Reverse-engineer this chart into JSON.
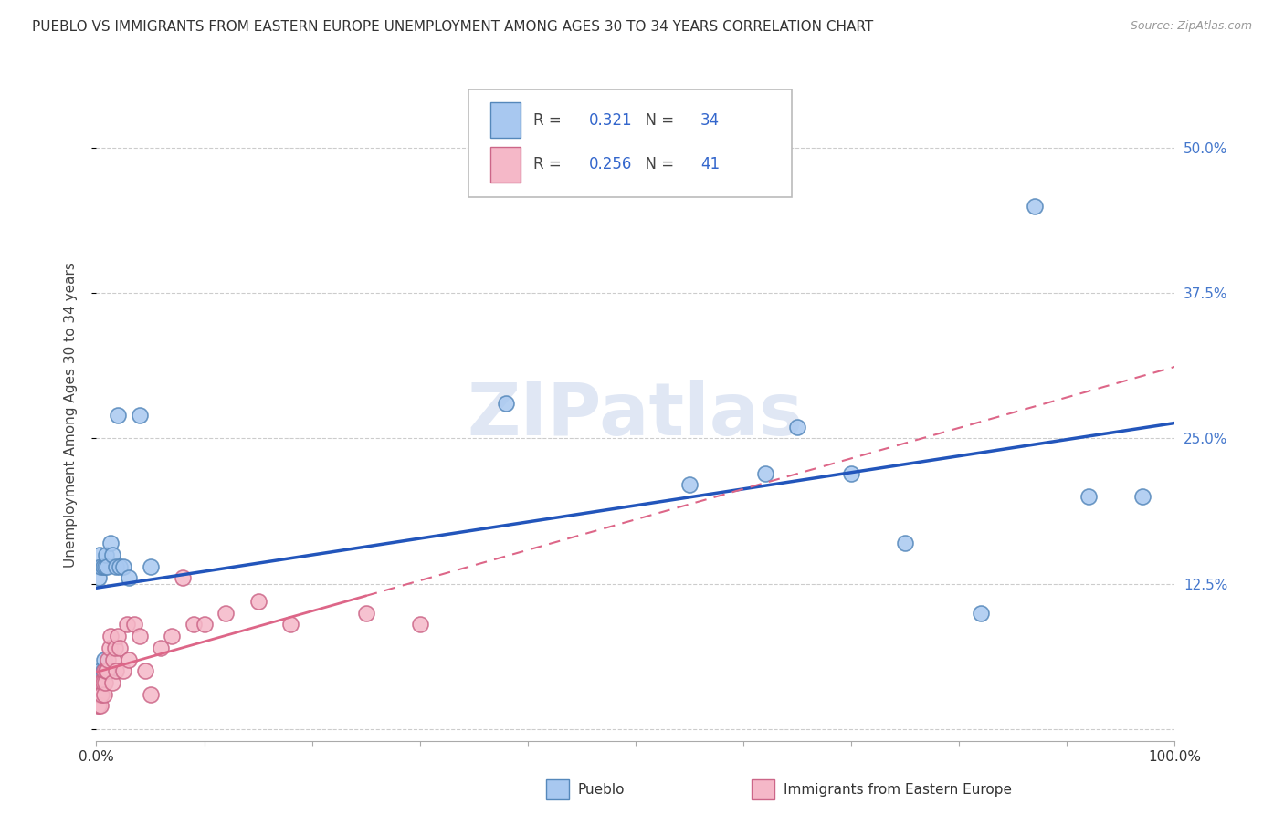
{
  "title": "PUEBLO VS IMMIGRANTS FROM EASTERN EUROPE UNEMPLOYMENT AMONG AGES 30 TO 34 YEARS CORRELATION CHART",
  "source": "Source: ZipAtlas.com",
  "ylabel": "Unemployment Among Ages 30 to 34 years",
  "xlim": [
    0,
    1.0
  ],
  "ylim": [
    -0.01,
    0.55
  ],
  "ytick_positions": [
    0.0,
    0.125,
    0.25,
    0.375,
    0.5
  ],
  "ytick_labels_right": [
    "",
    "12.5%",
    "25.0%",
    "37.5%",
    "50.0%"
  ],
  "pueblo_R": "0.321",
  "pueblo_N": "34",
  "eastern_europe_R": "0.256",
  "eastern_europe_N": "41",
  "pueblo_color": "#a8c8f0",
  "pueblo_edge_color": "#5588bb",
  "eastern_europe_color": "#f5b8c8",
  "eastern_europe_edge_color": "#cc6688",
  "trend_pueblo_color": "#2255bb",
  "trend_eastern_color": "#dd6688",
  "background_color": "#ffffff",
  "grid_color": "#cccccc",
  "watermark": "ZIPatlas",
  "pueblo_x": [
    0.001,
    0.002,
    0.003,
    0.003,
    0.004,
    0.004,
    0.005,
    0.006,
    0.006,
    0.007,
    0.008,
    0.009,
    0.01,
    0.011,
    0.012,
    0.013,
    0.015,
    0.018,
    0.02,
    0.022,
    0.025,
    0.03,
    0.04,
    0.05,
    0.38,
    0.55,
    0.62,
    0.65,
    0.7,
    0.75,
    0.82,
    0.87,
    0.92,
    0.97
  ],
  "pueblo_y": [
    0.03,
    0.13,
    0.15,
    0.05,
    0.14,
    0.04,
    0.04,
    0.14,
    0.05,
    0.06,
    0.14,
    0.15,
    0.14,
    0.05,
    0.05,
    0.16,
    0.15,
    0.14,
    0.27,
    0.14,
    0.14,
    0.13,
    0.27,
    0.14,
    0.28,
    0.21,
    0.22,
    0.26,
    0.22,
    0.16,
    0.1,
    0.45,
    0.2,
    0.2
  ],
  "eastern_x": [
    0.001,
    0.002,
    0.002,
    0.003,
    0.003,
    0.004,
    0.004,
    0.005,
    0.005,
    0.006,
    0.007,
    0.007,
    0.008,
    0.009,
    0.01,
    0.011,
    0.012,
    0.013,
    0.015,
    0.016,
    0.017,
    0.018,
    0.02,
    0.022,
    0.025,
    0.028,
    0.03,
    0.035,
    0.04,
    0.045,
    0.05,
    0.06,
    0.07,
    0.08,
    0.09,
    0.1,
    0.12,
    0.15,
    0.18,
    0.25,
    0.3
  ],
  "eastern_y": [
    0.02,
    0.03,
    0.02,
    0.03,
    0.04,
    0.03,
    0.02,
    0.04,
    0.03,
    0.04,
    0.05,
    0.03,
    0.04,
    0.05,
    0.05,
    0.06,
    0.07,
    0.08,
    0.04,
    0.06,
    0.07,
    0.05,
    0.08,
    0.07,
    0.05,
    0.09,
    0.06,
    0.09,
    0.08,
    0.05,
    0.03,
    0.07,
    0.08,
    0.13,
    0.09,
    0.09,
    0.1,
    0.11,
    0.09,
    0.1,
    0.09
  ]
}
